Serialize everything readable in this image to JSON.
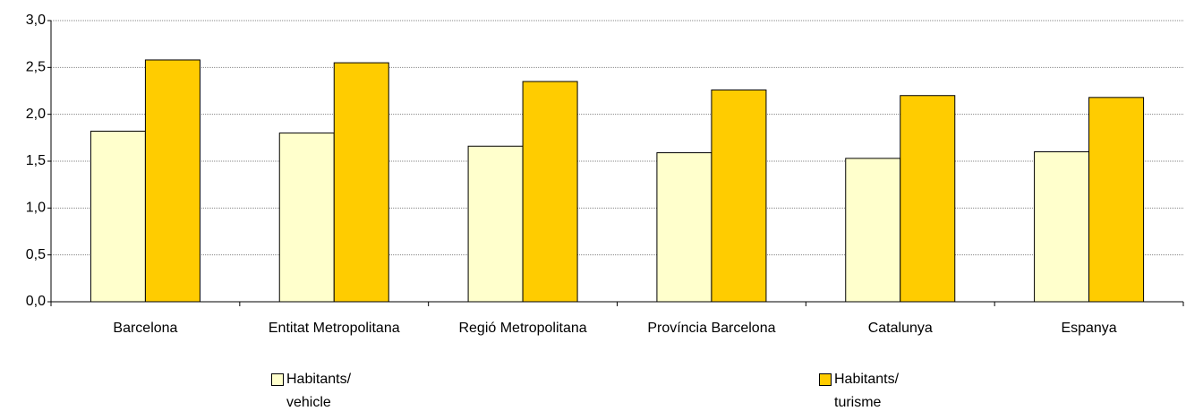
{
  "chart_data": {
    "type": "bar",
    "categories": [
      "Barcelona",
      "Entitat Metropolitana",
      "Regió Metropolitana",
      "Província Barcelona",
      "Catalunya",
      "Espanya"
    ],
    "series": [
      {
        "name": "Habitants/ vehicle",
        "color": "#ffffcc",
        "values": [
          1.82,
          1.8,
          1.66,
          1.59,
          1.53,
          1.6
        ]
      },
      {
        "name": "Habitants/ turisme",
        "color": "#ffcc00",
        "values": [
          2.58,
          2.55,
          2.35,
          2.26,
          2.2,
          2.18
        ]
      }
    ],
    "ylim": [
      0,
      3
    ],
    "yticks": [
      {
        "value": 0,
        "label": "0,0"
      },
      {
        "value": 0.5,
        "label": "0,5"
      },
      {
        "value": 1,
        "label": "1,0"
      },
      {
        "value": 1.5,
        "label": "1,5"
      },
      {
        "value": 2,
        "label": "2,0"
      },
      {
        "value": 2.5,
        "label": "2,5"
      },
      {
        "value": 3,
        "label": "3,0"
      }
    ],
    "grid": true,
    "legend": "bottom"
  }
}
